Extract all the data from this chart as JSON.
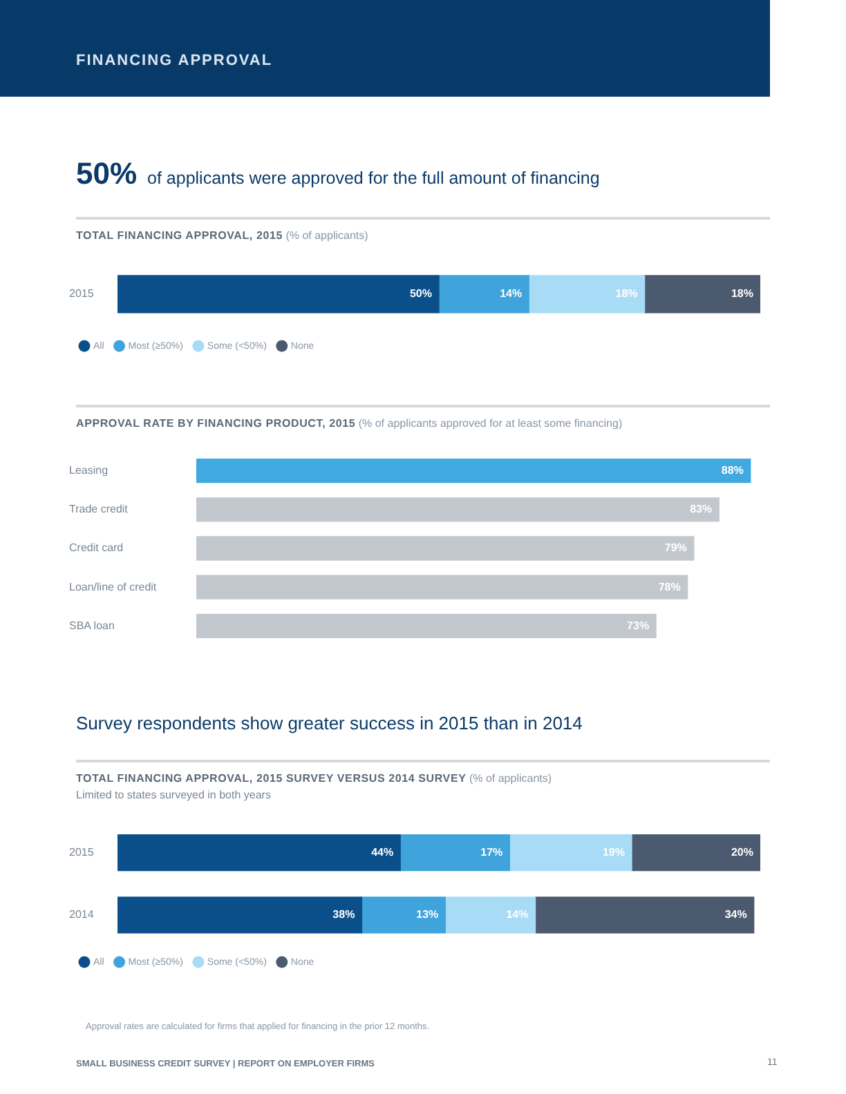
{
  "chart_data": [
    {
      "type": "bar",
      "orientation": "horizontal",
      "stacked": true,
      "title": "TOTAL FINANCING APPROVAL, 2015",
      "subtitle": "(% of applicants)",
      "annotations": [
        "FINANCING APPROVAL",
        "50% of applicants were approved for the full amount of financing"
      ],
      "categories": [
        "2015"
      ],
      "series": [
        {
          "name": "All",
          "color": "#0b4f8a",
          "values": [
            50
          ],
          "value_labels": [
            "50%"
          ]
        },
        {
          "name": "Most (≥50%)",
          "color": "#3fa3dc",
          "values": [
            14
          ],
          "value_labels": [
            "14%"
          ]
        },
        {
          "name": "Some (<50%)",
          "color": "#a8dbf5",
          "values": [
            18
          ],
          "value_labels": [
            "18%"
          ]
        },
        {
          "name": "None",
          "color": "#4b5a6e",
          "values": [
            18
          ],
          "value_labels": [
            "18%"
          ]
        }
      ],
      "xlim": [
        0,
        100
      ],
      "tick_labels": "y",
      "legend": "bottom left"
    },
    {
      "type": "bar",
      "orientation": "horizontal",
      "title": "APPROVAL RATE BY FINANCING PRODUCT, 2015",
      "subtitle": "(% of applicants approved for at least some financing)",
      "categories": [
        "Leasing",
        "Trade credit",
        "Credit card",
        "Loan/line of credit",
        "SBA loan"
      ],
      "values": [
        88,
        83,
        79,
        78,
        73
      ],
      "colors": [
        "#3fa9e0",
        "#c3c7ce",
        "#c3c7ce",
        "#c3c7ce",
        "#c3c7ce"
      ],
      "value_labels": [
        "88%",
        "83%",
        "79%",
        "78%",
        "73%"
      ],
      "tick_labels": "y"
    },
    {
      "type": "bar",
      "orientation": "horizontal",
      "stacked": true,
      "title": "TOTAL FINANCING APPROVAL, 2015 SURVEY VERSUS 2014 SURVEY",
      "subtitle": "(% of applicants)",
      "annotations": [
        "Survey respondents show greater success in 2015 than in 2014",
        "Limited to states surveyed in both years",
        "Approval rates are calculated for firms that applied for financing in the prior 12 months.",
        "SMALL BUSINESS CREDIT SURVEY | REPORT ON EMPLOYER FIRMS",
        "11"
      ],
      "categories": [
        "2015",
        "2014"
      ],
      "series": [
        {
          "name": "All",
          "color": "#0b4f8a",
          "values": [
            44,
            38
          ],
          "value_labels": [
            "44%",
            "38%"
          ]
        },
        {
          "name": "Most (≥50%)",
          "color": "#3fa3dc",
          "values": [
            17,
            13
          ],
          "value_labels": [
            "17%",
            "13%"
          ]
        },
        {
          "name": "Some (<50%)",
          "color": "#a8dbf5",
          "values": [
            19,
            14
          ],
          "value_labels": [
            "19%",
            "14%"
          ]
        },
        {
          "name": "None",
          "color": "#4b5a6e",
          "values": [
            20,
            34
          ],
          "value_labels": [
            "20%",
            "34%"
          ]
        }
      ],
      "xlim": [
        0,
        100
      ],
      "tick_labels": "y",
      "legend": "bottom left"
    }
  ]
}
